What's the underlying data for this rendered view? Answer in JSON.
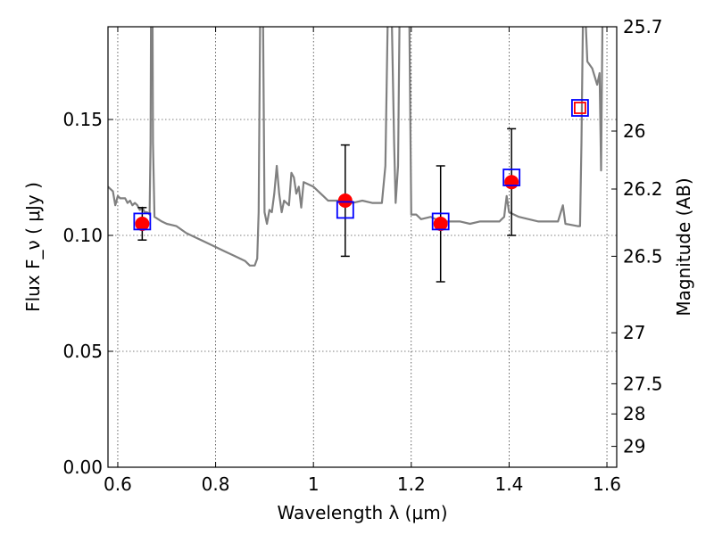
{
  "chart_data": {
    "type": "scatter",
    "title": "",
    "xlabel": "Wavelength  λ (μm)",
    "ylabel": "Flux  F_ν  ( μJy )",
    "y2label": "Magnitude (AB)",
    "xlim": [
      0.58,
      1.62
    ],
    "ylim": [
      0.0,
      0.19
    ],
    "grid": true,
    "xticks": [
      0.6,
      0.8,
      1.0,
      1.2,
      1.4,
      1.6
    ],
    "xtick_labels": [
      "0.6",
      "0.8",
      "1",
      "1.2",
      "1.4",
      "1.6"
    ],
    "yticks": [
      0.0,
      0.05,
      0.1,
      0.15
    ],
    "ytick_labels": [
      "0.00",
      "0.05",
      "0.10",
      "0.15"
    ],
    "y2ticks": [
      {
        "label": "25.7",
        "flux": 0.19
      },
      {
        "label": "26",
        "flux": 0.145
      },
      {
        "label": "26.2",
        "flux": 0.12
      },
      {
        "label": "26.5",
        "flux": 0.091
      },
      {
        "label": "27",
        "flux": 0.058
      },
      {
        "label": "27.5",
        "flux": 0.036
      },
      {
        "label": "28",
        "flux": 0.023
      },
      {
        "label": "29",
        "flux": 0.009
      }
    ],
    "series": [
      {
        "kind": "line",
        "color": "#808080",
        "points": [
          [
            0.58,
            0.121
          ],
          [
            0.59,
            0.119
          ],
          [
            0.595,
            0.113
          ],
          [
            0.6,
            0.117
          ],
          [
            0.605,
            0.116
          ],
          [
            0.615,
            0.116
          ],
          [
            0.62,
            0.114
          ],
          [
            0.625,
            0.115
          ],
          [
            0.63,
            0.113
          ],
          [
            0.635,
            0.114
          ],
          [
            0.64,
            0.113
          ],
          [
            0.645,
            0.111
          ],
          [
            0.65,
            0.112
          ],
          [
            0.655,
            0.11
          ],
          [
            0.66,
            0.11
          ],
          [
            0.665,
            0.109
          ],
          [
            0.667,
            0.14
          ],
          [
            0.668,
            0.195
          ],
          [
            0.671,
            0.195
          ],
          [
            0.672,
            0.14
          ],
          [
            0.675,
            0.108
          ],
          [
            0.69,
            0.106
          ],
          [
            0.7,
            0.105
          ],
          [
            0.72,
            0.104
          ],
          [
            0.74,
            0.101
          ],
          [
            0.76,
            0.099
          ],
          [
            0.78,
            0.097
          ],
          [
            0.8,
            0.095
          ],
          [
            0.82,
            0.093
          ],
          [
            0.84,
            0.091
          ],
          [
            0.86,
            0.089
          ],
          [
            0.87,
            0.087
          ],
          [
            0.88,
            0.087
          ],
          [
            0.885,
            0.09
          ],
          [
            0.888,
            0.11
          ],
          [
            0.891,
            0.195
          ],
          [
            0.897,
            0.195
          ],
          [
            0.9,
            0.11
          ],
          [
            0.905,
            0.105
          ],
          [
            0.91,
            0.111
          ],
          [
            0.915,
            0.11
          ],
          [
            0.92,
            0.118
          ],
          [
            0.925,
            0.13
          ],
          [
            0.93,
            0.118
          ],
          [
            0.935,
            0.11
          ],
          [
            0.94,
            0.115
          ],
          [
            0.95,
            0.113
          ],
          [
            0.955,
            0.127
          ],
          [
            0.96,
            0.125
          ],
          [
            0.965,
            0.118
          ],
          [
            0.97,
            0.121
          ],
          [
            0.975,
            0.112
          ],
          [
            0.98,
            0.123
          ],
          [
            1.0,
            0.121
          ],
          [
            1.02,
            0.117
          ],
          [
            1.03,
            0.115
          ],
          [
            1.06,
            0.115
          ],
          [
            1.08,
            0.114
          ],
          [
            1.1,
            0.115
          ],
          [
            1.12,
            0.114
          ],
          [
            1.14,
            0.114
          ],
          [
            1.147,
            0.13
          ],
          [
            1.152,
            0.195
          ],
          [
            1.16,
            0.195
          ],
          [
            1.165,
            0.14
          ],
          [
            1.168,
            0.114
          ],
          [
            1.173,
            0.13
          ],
          [
            1.176,
            0.195
          ],
          [
            1.184,
            0.195
          ],
          [
            1.19,
            0.195
          ],
          [
            1.196,
            0.195
          ],
          [
            1.2,
            0.109
          ],
          [
            1.21,
            0.109
          ],
          [
            1.22,
            0.107
          ],
          [
            1.24,
            0.108
          ],
          [
            1.26,
            0.106
          ],
          [
            1.28,
            0.106
          ],
          [
            1.3,
            0.106
          ],
          [
            1.32,
            0.105
          ],
          [
            1.34,
            0.106
          ],
          [
            1.38,
            0.106
          ],
          [
            1.39,
            0.108
          ],
          [
            1.395,
            0.117
          ],
          [
            1.4,
            0.11
          ],
          [
            1.42,
            0.108
          ],
          [
            1.44,
            0.107
          ],
          [
            1.46,
            0.106
          ],
          [
            1.5,
            0.106
          ],
          [
            1.51,
            0.113
          ],
          [
            1.515,
            0.105
          ],
          [
            1.54,
            0.104
          ],
          [
            1.545,
            0.104
          ],
          [
            1.548,
            0.14
          ],
          [
            1.551,
            0.195
          ],
          [
            1.556,
            0.195
          ],
          [
            1.56,
            0.175
          ],
          [
            1.57,
            0.172
          ],
          [
            1.58,
            0.165
          ],
          [
            1.585,
            0.17
          ],
          [
            1.588,
            0.128
          ],
          [
            1.591,
            0.195
          ],
          [
            1.6,
            0.195
          ],
          [
            1.62,
            0.195
          ]
        ]
      },
      {
        "kind": "points",
        "marker": "circle",
        "color": "#ff0000",
        "points": [
          {
            "x": 0.65,
            "y": 0.105,
            "err": 0.007
          },
          {
            "x": 1.065,
            "y": 0.115,
            "err": 0.024
          },
          {
            "x": 1.26,
            "y": 0.105,
            "err": 0.025
          },
          {
            "x": 1.405,
            "y": 0.123,
            "err": 0.023
          }
        ]
      },
      {
        "kind": "points",
        "marker": "square",
        "color": "#0000ff",
        "points": [
          {
            "x": 0.65,
            "y": 0.106
          },
          {
            "x": 1.065,
            "y": 0.111
          },
          {
            "x": 1.26,
            "y": 0.106
          },
          {
            "x": 1.405,
            "y": 0.125
          },
          {
            "x": 1.545,
            "y": 0.155
          }
        ]
      },
      {
        "kind": "points",
        "marker": "square",
        "color": "#ff0000",
        "points": [
          {
            "x": 1.545,
            "y": 0.155
          }
        ]
      }
    ]
  }
}
